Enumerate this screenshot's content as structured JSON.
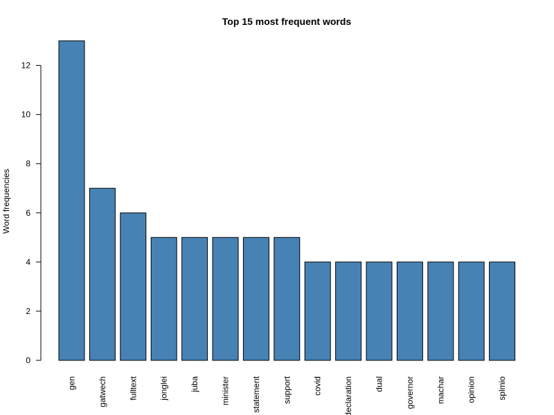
{
  "chart_data": {
    "type": "bar",
    "title": "Top 15 most frequent words",
    "xlabel": "",
    "ylabel": "Word frequencies",
    "categories": [
      "gen",
      "gatwech",
      "fulltext",
      "jonglei",
      "juba",
      "minister",
      "statement",
      "support",
      "covid",
      "declaration",
      "dual",
      "governor",
      "machar",
      "opinion",
      "splmio"
    ],
    "values": [
      13,
      7,
      6,
      5,
      5,
      5,
      5,
      5,
      4,
      4,
      4,
      4,
      4,
      4,
      4
    ],
    "yticks": [
      0,
      2,
      4,
      6,
      8,
      10,
      12
    ],
    "ylim": [
      0,
      13
    ],
    "bar_color": "#4682b4",
    "grid": false,
    "legend": "none"
  }
}
